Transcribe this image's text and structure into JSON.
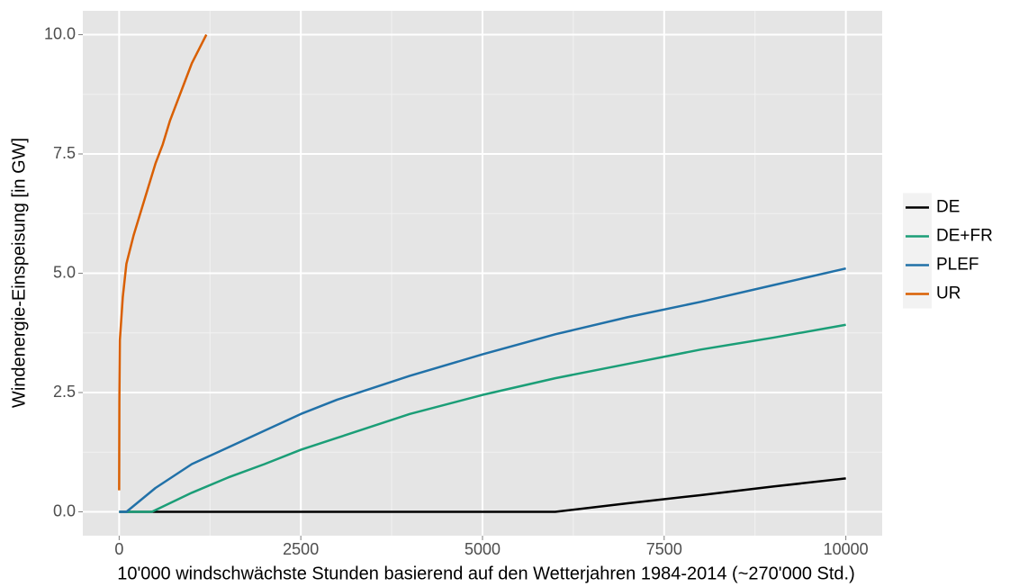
{
  "chart_data": {
    "type": "line",
    "x_label": "10'000 windschwächste Stunden basierend auf den Wetterjahren 1984-2014 (~270'000 Std.)",
    "y_label": "Windenergie-Einspeisung [in GW]",
    "xlim": [
      -500,
      10500
    ],
    "ylim": [
      -0.5,
      10.5
    ],
    "xticks": [
      0,
      2500,
      5000,
      7500,
      10000
    ],
    "yticks": [
      {
        "value": 0,
        "label": "0.0"
      },
      2.5,
      {
        "value": 5,
        "label": "5.0"
      },
      7.5,
      {
        "value": 10,
        "label": "10.0"
      }
    ],
    "grid": true,
    "legend": "right",
    "series": [
      {
        "name": "DE",
        "color": "#000000",
        "x": [
          0,
          6000,
          7000,
          8000,
          9000,
          10000
        ],
        "values": [
          0,
          0,
          0.18,
          0.35,
          0.53,
          0.7
        ]
      },
      {
        "name": "DE+FR",
        "color": "#1b9e77",
        "x": [
          0,
          450,
          1000,
          1500,
          2000,
          2500,
          3000,
          4000,
          5000,
          6000,
          7000,
          8000,
          9000,
          10000
        ],
        "values": [
          0,
          0,
          0.4,
          0.72,
          1.0,
          1.3,
          1.55,
          2.05,
          2.45,
          2.8,
          3.1,
          3.4,
          3.65,
          3.92
        ]
      },
      {
        "name": "PLEF",
        "color": "#2171a8",
        "x": [
          0,
          100,
          500,
          1000,
          1500,
          2000,
          2500,
          3000,
          4000,
          5000,
          6000,
          7000,
          8000,
          9000,
          10000
        ],
        "values": [
          0,
          0,
          0.5,
          1.0,
          1.35,
          1.7,
          2.05,
          2.35,
          2.85,
          3.3,
          3.72,
          4.08,
          4.4,
          4.75,
          5.1
        ]
      },
      {
        "name": "UR",
        "color": "#d95f02",
        "x": [
          0,
          3,
          10,
          50,
          100,
          200,
          300,
          400,
          500,
          600,
          700,
          800,
          900,
          1000,
          1100,
          1200
        ],
        "values": [
          0.45,
          2.3,
          3.6,
          4.5,
          5.2,
          5.8,
          6.3,
          6.8,
          7.3,
          7.7,
          8.2,
          8.6,
          9.0,
          9.4,
          9.7,
          10.0
        ]
      }
    ]
  }
}
